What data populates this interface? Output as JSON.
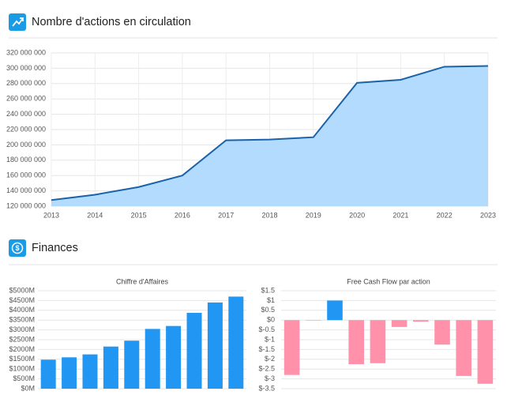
{
  "sections": [
    {
      "title": "Finances"
    }
  ],
  "chart_data": [
    {
      "type": "area",
      "title": "Nombre d'actions en circulation",
      "x": [
        2013,
        2014,
        2015,
        2016,
        2017,
        2018,
        2019,
        2020,
        2021,
        2022,
        2023
      ],
      "values": [
        128000000,
        135000000,
        145000000,
        160000000,
        206000000,
        207000000,
        210000000,
        281000000,
        285000000,
        302000000,
        303000000
      ],
      "color": "#1a62aa",
      "fill_color": "#b3dbfd",
      "xlim": [
        2013,
        2023
      ],
      "xticks": [
        2013,
        2014,
        2015,
        2016,
        2017,
        2018,
        2019,
        2020,
        2021,
        2022,
        2023
      ],
      "ylim": [
        120000000,
        320000000
      ],
      "yticks": [
        {
          "value": 120000000,
          "label": "120 000 000"
        },
        {
          "value": 140000000,
          "label": "140 000 000"
        },
        {
          "value": 160000000,
          "label": "160 000 000"
        },
        {
          "value": 180000000,
          "label": "180 000 000"
        },
        {
          "value": 200000000,
          "label": "200 000 000"
        },
        {
          "value": 220000000,
          "label": "220 000 000"
        },
        {
          "value": 240000000,
          "label": "240 000 000"
        },
        {
          "value": 260000000,
          "label": "260 000 000"
        },
        {
          "value": 280000000,
          "label": "280 000 000"
        },
        {
          "value": 300000000,
          "label": "300 000 000"
        },
        {
          "value": 320000000,
          "label": "320 000 000"
        }
      ],
      "grid": true
    },
    {
      "type": "bar",
      "title": "Chiffre d'Affaires",
      "categories": [
        null,
        null,
        null,
        null,
        null,
        null,
        null,
        null,
        null,
        null
      ],
      "values": [
        1480,
        1600,
        1750,
        2150,
        2450,
        3050,
        3200,
        3870,
        4400,
        4700
      ],
      "color": "#2196f3",
      "ylim": [
        0,
        5000
      ],
      "yticks": [
        {
          "value": 0,
          "label": "$0M"
        },
        {
          "value": 500,
          "label": "$500M"
        },
        {
          "value": 1000,
          "label": "$1000M"
        },
        {
          "value": 1500,
          "label": "$1500M"
        },
        {
          "value": 2000,
          "label": "$2000M"
        },
        {
          "value": 2500,
          "label": "$2500M"
        },
        {
          "value": 3000,
          "label": "$3000M"
        },
        {
          "value": 3500,
          "label": "$3500M"
        },
        {
          "value": 4000,
          "label": "$4000M"
        },
        {
          "value": 4500,
          "label": "$4500M"
        },
        {
          "value": 5000,
          "label": "$5000M"
        }
      ],
      "grid": true
    },
    {
      "type": "bar",
      "title": "Free Cash Flow par action",
      "categories": [
        null,
        null,
        null,
        null,
        null,
        null,
        null,
        null,
        null,
        null
      ],
      "values": [
        -2.8,
        -0.02,
        1.0,
        -2.25,
        -2.2,
        -0.35,
        -0.08,
        -1.25,
        -2.85,
        -3.25
      ],
      "positive_color": "#2196f3",
      "negative_color": "#ff91ab",
      "ylim": [
        -3.5,
        1.5
      ],
      "yticks": [
        {
          "value": -3.5,
          "label": "$-3.5"
        },
        {
          "value": -3,
          "label": "$-3"
        },
        {
          "value": -2.5,
          "label": "$-2.5"
        },
        {
          "value": -2,
          "label": "$-2"
        },
        {
          "value": -1.5,
          "label": "$-1.5"
        },
        {
          "value": -1,
          "label": "$-1"
        },
        {
          "value": -0.5,
          "label": "$-0.5"
        },
        {
          "value": 0,
          "label": "$0"
        },
        {
          "value": 0.5,
          "label": "$0.5"
        },
        {
          "value": 1,
          "label": "$1"
        },
        {
          "value": 1.5,
          "label": "$1.5"
        }
      ],
      "grid": true
    }
  ]
}
